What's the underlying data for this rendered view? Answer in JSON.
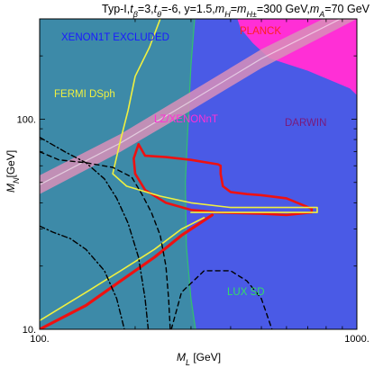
{
  "title": "Typ-I,tβ=3,tθ=-6, y=1.5,mH=mH±=300 GeV,mA=70 GeV",
  "title_parts": {
    "p1": "Typ-I,",
    "t1": "t",
    "s1": "β",
    "p2": "=3,",
    "t2": "t",
    "s2": "θ",
    "p3": "=-6, y=1.5,",
    "t3": "m",
    "s3": "H",
    "p4": "=",
    "t4": "m",
    "s4": "H±",
    "p5": "=300 GeV,",
    "t5": "m",
    "s5": "A",
    "p6": "=70 GeV"
  },
  "axes": {
    "xlabel_main": "M",
    "xlabel_sub": "L",
    "xlabel_unit": " [GeV]",
    "ylabel_main": "M",
    "ylabel_sub": "N",
    "ylabel_unit": "[GeV]"
  },
  "annotations": {
    "xenon1t": "XENON1T EXCLUDED",
    "planck": "PLANCK",
    "fermi": "FERMI DSph",
    "lz": "LZ/XENONnT",
    "darwin": "DARWIN",
    "lux": "LUX SD"
  },
  "colors": {
    "xenon1t_region": "#3d8aa8",
    "lux_region": "#4a5ae6",
    "darwin_region": "#ff2fd6",
    "lz_band": "#d88fb8",
    "planck_curve": "#ee1111",
    "fermi_curve": "#f0f040",
    "lux_boundary": "#33c070",
    "black_curves": "#000000",
    "xenon_text": "#1a1aff",
    "planck_text": "#ff2020",
    "fermi_text": "#f0f040",
    "lz_text": "#ff2fd6",
    "darwin_text": "#7a1a7a",
    "lux_text": "#33dd66"
  },
  "chart_data": {
    "type": "region-plot",
    "xscale": "log",
    "yscale": "log",
    "xlim": [
      100,
      1000
    ],
    "ylim": [
      10,
      300
    ],
    "xticks": [
      {
        "value": 100,
        "label": "100."
      },
      {
        "value": 1000,
        "label": "1000."
      }
    ],
    "yticks": [
      {
        "value": 10,
        "label": "10."
      },
      {
        "value": 100,
        "label": "100."
      }
    ],
    "regions": [
      {
        "name": "XENON1T EXCLUDED",
        "fill": "#3d8aa8",
        "boundary": [
          [
            100,
            10
          ],
          [
            100,
            300
          ],
          [
            308,
            300
          ],
          [
            300,
            180
          ],
          [
            294,
            100
          ],
          [
            288,
            50
          ],
          [
            290,
            25
          ],
          [
            300,
            14
          ],
          [
            310,
            10
          ]
        ]
      },
      {
        "name": "LUX SD",
        "fill": "#4a5ae6",
        "boundary": [
          [
            308,
            300
          ],
          [
            1000,
            300
          ],
          [
            1000,
            10
          ],
          [
            310,
            10
          ],
          [
            300,
            14
          ],
          [
            290,
            25
          ],
          [
            288,
            50
          ],
          [
            294,
            100
          ],
          [
            300,
            180
          ]
        ]
      },
      {
        "name": "DARWIN",
        "fill": "#ff2fd6",
        "boundary": [
          [
            1000,
            300
          ],
          [
            1000,
            130
          ],
          [
            950,
            140
          ],
          [
            700,
            170
          ],
          [
            530,
            195
          ],
          [
            470,
            230
          ],
          [
            430,
            270
          ],
          [
            420,
            300
          ]
        ]
      },
      {
        "name": "LZ/XENONnT",
        "fill": "#d88fb8",
        "band": "diagonal",
        "edges": [
          [
            [
              100,
              44
            ],
            [
              180,
              70
            ],
            [
              300,
              110
            ],
            [
              500,
              175
            ],
            [
              1000,
              300
            ]
          ],
          [
            [
              100,
              54
            ],
            [
              180,
              85
            ],
            [
              300,
              135
            ],
            [
              500,
              215
            ],
            [
              1000,
              360
            ]
          ]
        ]
      }
    ],
    "curves": [
      {
        "name": "PLANCK",
        "color": "#ee1111",
        "points": [
          [
            205,
            76
          ],
          [
            215,
            67
          ],
          [
            250,
            66
          ],
          [
            300,
            64
          ],
          [
            340,
            62
          ],
          [
            365,
            61
          ],
          [
            372,
            60
          ],
          [
            372,
            55
          ],
          [
            378,
            48
          ],
          [
            400,
            45
          ],
          [
            450,
            44
          ],
          [
            500,
            43.5
          ],
          [
            600,
            42
          ],
          [
            720,
            37.5
          ],
          [
            720,
            36
          ],
          [
            600,
            35
          ],
          [
            500,
            35.5
          ],
          [
            400,
            35.8
          ],
          [
            360,
            36
          ],
          [
            330,
            36.5
          ],
          [
            300,
            37
          ],
          [
            250,
            40
          ],
          [
            215,
            46
          ],
          [
            200,
            55
          ],
          [
            198,
            65
          ],
          [
            205,
            76
          ]
        ]
      },
      {
        "name": "FERMI DSph",
        "color": "#f0f040",
        "points": [
          [
            240,
            300
          ],
          [
            222,
            220
          ],
          [
            200,
            160
          ],
          [
            190,
            110
          ],
          [
            180,
            80
          ],
          [
            170,
            55
          ],
          [
            188,
            48
          ],
          [
            240,
            43
          ],
          [
            300,
            40
          ],
          [
            400,
            38
          ],
          [
            550,
            38
          ],
          [
            750,
            38
          ],
          [
            750,
            36
          ],
          [
            550,
            36
          ],
          [
            400,
            36
          ],
          [
            300,
            36
          ]
        ]
      },
      {
        "name": "relic lower",
        "color": "#ee1111",
        "points": [
          [
            100,
            10
          ],
          [
            140,
            13
          ],
          [
            180,
            17
          ],
          [
            230,
            22
          ],
          [
            280,
            28
          ],
          [
            350,
            35
          ]
        ]
      },
      {
        "name": "fermi lower",
        "color": "#f0f040",
        "points": [
          [
            100,
            11
          ],
          [
            140,
            15
          ],
          [
            180,
            19
          ],
          [
            230,
            24
          ],
          [
            280,
            30
          ],
          [
            330,
            34
          ]
        ]
      },
      {
        "name": "dashed",
        "color": "#000000",
        "points": [
          [
            100,
            70
          ],
          [
            115,
            64
          ],
          [
            140,
            62
          ],
          [
            170,
            59
          ],
          [
            195,
            53
          ],
          [
            210,
            44
          ],
          [
            225,
            36
          ],
          [
            240,
            28
          ],
          [
            250,
            20
          ],
          [
            255,
            14
          ],
          [
            258,
            10
          ]
        ]
      },
      {
        "name": "dashed lower",
        "color": "#000000",
        "points": [
          [
            260,
            10
          ],
          [
            280,
            15
          ],
          [
            330,
            19
          ],
          [
            400,
            19
          ],
          [
            450,
            17
          ],
          [
            500,
            14
          ],
          [
            540,
            10
          ]
        ]
      },
      {
        "name": "dash-dot",
        "color": "#000000",
        "points": [
          [
            100,
            31
          ],
          [
            110,
            29
          ],
          [
            125,
            27
          ],
          [
            140,
            24
          ],
          [
            160,
            19
          ],
          [
            175,
            14
          ],
          [
            185,
            10
          ]
        ]
      },
      {
        "name": "dash-dot 2",
        "color": "#000000",
        "points": [
          [
            100,
            82
          ],
          [
            120,
            70
          ],
          [
            140,
            62
          ],
          [
            160,
            52
          ],
          [
            175,
            42
          ],
          [
            190,
            32
          ],
          [
            205,
            22
          ],
          [
            215,
            14
          ],
          [
            220,
            10
          ]
        ]
      }
    ]
  }
}
